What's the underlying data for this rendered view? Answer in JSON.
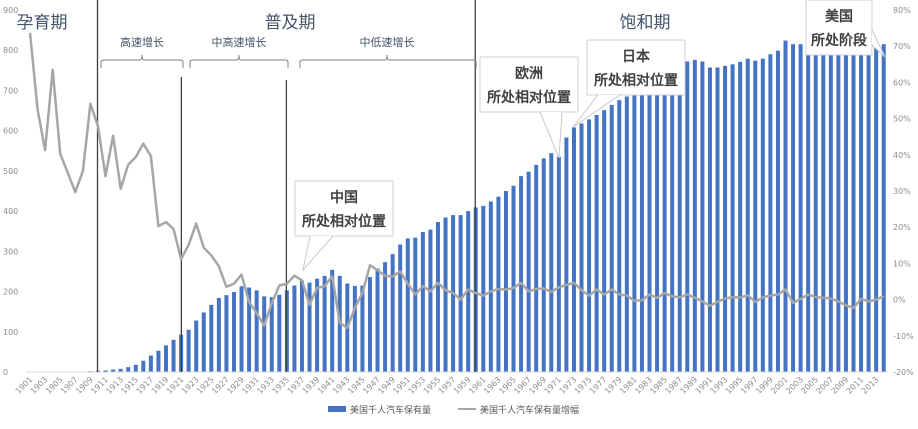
{
  "chart_data": {
    "type": "bar+line",
    "title": "",
    "years": [
      1901,
      1902,
      1903,
      1904,
      1905,
      1906,
      1907,
      1908,
      1909,
      1910,
      1911,
      1912,
      1913,
      1914,
      1915,
      1916,
      1917,
      1918,
      1919,
      1920,
      1921,
      1922,
      1923,
      1924,
      1925,
      1926,
      1927,
      1928,
      1929,
      1930,
      1931,
      1932,
      1933,
      1934,
      1935,
      1936,
      1937,
      1938,
      1939,
      1940,
      1941,
      1942,
      1943,
      1944,
      1945,
      1946,
      1947,
      1948,
      1949,
      1950,
      1951,
      1952,
      1953,
      1954,
      1955,
      1956,
      1957,
      1958,
      1959,
      1960,
      1961,
      1962,
      1963,
      1964,
      1965,
      1966,
      1967,
      1968,
      1969,
      1970,
      1971,
      1972,
      1973,
      1974,
      1975,
      1976,
      1977,
      1978,
      1979,
      1980,
      1981,
      1982,
      1983,
      1984,
      1985,
      1986,
      1987,
      1988,
      1989,
      1990,
      1991,
      1992,
      1993,
      1994,
      1995,
      1996,
      1997,
      1998,
      1999,
      2000,
      2001,
      2002,
      2003,
      2004,
      2005,
      2006,
      2007,
      2008,
      2009,
      2010,
      2011,
      2012,
      2013,
      2014
    ],
    "series": [
      {
        "name": "美国千人汽车保有量",
        "type": "bar",
        "axis": "left",
        "color": "#4472c4",
        "values": [
          0,
          0,
          0,
          0,
          0,
          0,
          0,
          1,
          2,
          3,
          4,
          6,
          8,
          12,
          18,
          28,
          41,
          53,
          66,
          80,
          93,
          105,
          128,
          148,
          167,
          184,
          191,
          199,
          213,
          210,
          203,
          188,
          186,
          192,
          203,
          215,
          227,
          222,
          232,
          239,
          254,
          239,
          220,
          214,
          215,
          236,
          257,
          273,
          293,
          317,
          332,
          334,
          348,
          354,
          373,
          384,
          390,
          390,
          400,
          409,
          413,
          424,
          436,
          450,
          463,
          487,
          498,
          515,
          531,
          544,
          535,
          583,
          608,
          618,
          628,
          639,
          651,
          664,
          676,
          685,
          690,
          695,
          705,
          715,
          730,
          745,
          758,
          772,
          776,
          772,
          757,
          757,
          761,
          765,
          771,
          779,
          774,
          779,
          790,
          799,
          824,
          815,
          815,
          815,
          818,
          820,
          820,
          818,
          815,
          812,
          810,
          799,
          805,
          815
        ]
      },
      {
        "name": "美国千人汽车保有量增幅",
        "type": "line",
        "axis": "right",
        "color": "#a6a6a6",
        "values": [
          73.7,
          52.5,
          41.3,
          63.5,
          40.3,
          35,
          29.7,
          35.5,
          54.1,
          47.9,
          34.1,
          45.3,
          30.6,
          37.3,
          39.4,
          43.1,
          39.6,
          20.3,
          21.4,
          19.5,
          11.2,
          15.2,
          21,
          14.3,
          12.2,
          9.2,
          3.5,
          4.4,
          6.9,
          -0.7,
          -3.7,
          -7.2,
          -0.9,
          3.9,
          4.4,
          6.6,
          5.3,
          -1.4,
          3.2,
          3.7,
          6.4,
          -6.4,
          -7.8,
          -2.3,
          1.8,
          9.5,
          8.1,
          6.6,
          6.4,
          7.8,
          4.4,
          1.4,
          3.7,
          2.3,
          4.6,
          2.6,
          1.8,
          0,
          2.8,
          1.8,
          1.1,
          2.3,
          2.9,
          2.8,
          3.2,
          4.6,
          2.3,
          2.9,
          3.1,
          2.1,
          3.4,
          4.1,
          4.6,
          2.6,
          1.1,
          2.8,
          1.4,
          2.8,
          1.4,
          1.1,
          -0.3,
          -0.2,
          1.4,
          0.5,
          1.8,
          0.9,
          0.6,
          1.4,
          0.5,
          -0.5,
          -1.7,
          -0.6,
          0.3,
          0.6,
          0.6,
          1.2,
          -0.7,
          0.6,
          1.1,
          1.4,
          2.8,
          -0.9,
          0.2,
          1.4,
          0.7,
          0.5,
          0.3,
          -0.5,
          -1.6,
          -2.3,
          0.2,
          -0.5,
          0,
          0.9
        ]
      }
    ],
    "x_tick_labels": [
      "1901",
      "1903",
      "1905",
      "1907",
      "1909",
      "1911",
      "1913",
      "1915",
      "1917",
      "1919",
      "1921",
      "1923",
      "1925",
      "1927",
      "1929",
      "1931",
      "1933",
      "1935",
      "1937",
      "1939",
      "1941",
      "1943",
      "1945",
      "1947",
      "1949",
      "1951",
      "1953",
      "1955",
      "1957",
      "1959",
      "1961",
      "1963",
      "1965",
      "1967",
      "1969",
      "1971",
      "1973",
      "1975",
      "1977",
      "1979",
      "1981",
      "1983",
      "1985",
      "1987",
      "1989",
      "1991",
      "1993",
      "1995",
      "1997",
      "1999",
      "2001",
      "2003",
      "2005",
      "2007",
      "2009",
      "2011",
      "2013"
    ],
    "left_axis": {
      "ylim": [
        0,
        900
      ],
      "ticks": [
        "0",
        "100",
        "200",
        "300",
        "400",
        "500",
        "600",
        "700",
        "800",
        "900"
      ]
    },
    "right_axis": {
      "ylim": [
        -20,
        80
      ],
      "ticks": [
        "-20%",
        "-10%",
        "0%",
        "10%",
        "20%",
        "30%",
        "40%",
        "50%",
        "60%",
        "70%",
        "80%"
      ]
    },
    "phases": [
      {
        "label": "孕育期",
        "start": 1901,
        "end": 1910
      },
      {
        "label": "普及期",
        "start": 1910,
        "end": 1960
      },
      {
        "label": "饱和期",
        "start": 1960,
        "end": 2014
      }
    ],
    "sub_phases": [
      {
        "label": "高速增长",
        "start": 1911,
        "end": 1921
      },
      {
        "label": "中高速增长",
        "start": 1922,
        "end": 1935
      },
      {
        "label": "中低速增长",
        "start": 1937,
        "end": 1959
      }
    ],
    "callouts": [
      {
        "title": "中国",
        "text": "所处相对位置",
        "year": 1937
      },
      {
        "title": "欧洲",
        "text": "所处相对位置",
        "year": 1971
      },
      {
        "title": "日本",
        "text": "所处相对位置",
        "year": 1973
      },
      {
        "title": "美国",
        "text": "所处阶段",
        "year": 2014
      }
    ],
    "legend": {
      "placement": "bottom"
    }
  }
}
